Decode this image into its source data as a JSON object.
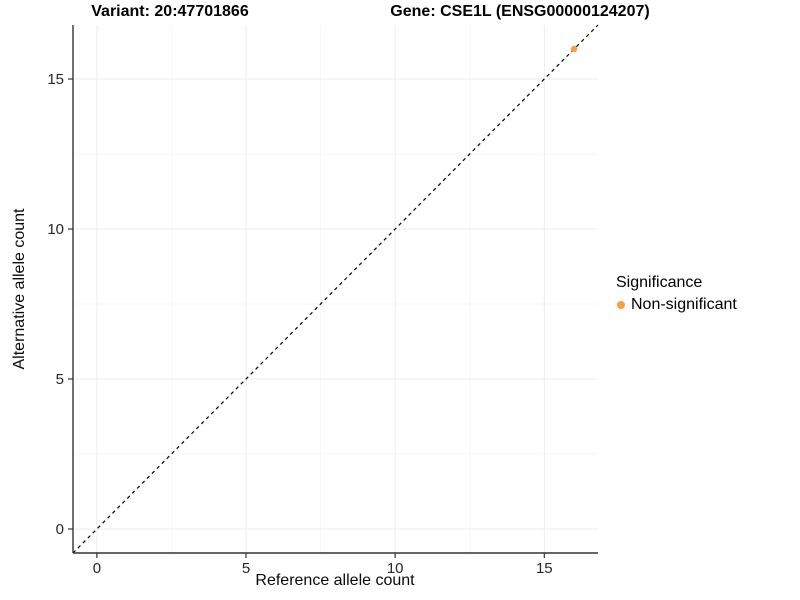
{
  "header": {
    "variant_title": "Variant: 20:47701866",
    "gene_title": "Gene: CSE1L (ENSG00000124207)"
  },
  "legend": {
    "title": "Significance",
    "items": [
      {
        "label": "Non-significant",
        "color": "#F9A13C",
        "marker": "circle-icon"
      }
    ]
  },
  "chart_data": {
    "type": "scatter",
    "title": "Variant: 20:47701866    Gene: CSE1L (ENSG00000124207)",
    "xlabel": "Reference allele count",
    "ylabel": "Alternative allele count",
    "xlim": [
      -0.8,
      16.8
    ],
    "ylim": [
      -0.8,
      16.8
    ],
    "x_ticks": [
      0,
      5,
      10,
      15
    ],
    "y_ticks": [
      0,
      5,
      10,
      15
    ],
    "x_minor_ticks": [
      2.5,
      7.5,
      12.5
    ],
    "y_minor_ticks": [
      2.5,
      7.5,
      12.5
    ],
    "grid": true,
    "legend_position": "right",
    "reference_line": {
      "kind": "abline",
      "slope": 1,
      "intercept": 0,
      "style": "dashed",
      "color": "#000000"
    },
    "series": [
      {
        "name": "Non-significant",
        "color": "#F9A13C",
        "points": [
          {
            "x": 16,
            "y": 16
          }
        ]
      }
    ]
  },
  "style_colors": {
    "axis_line": "#333333",
    "tick_label": "#262626",
    "grid_major": "#ededed",
    "grid_minor": "#f7f7f7",
    "background": "#ffffff"
  }
}
